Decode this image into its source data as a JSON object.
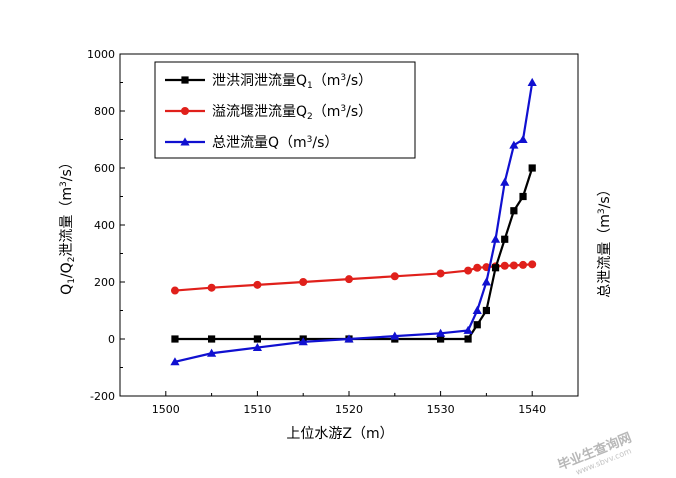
{
  "chart_data": {
    "type": "line",
    "xlabel": "上位水游Z（m）",
    "ylabel_left": "Q",
    "ylabel_left_sub1": "1",
    "ylabel_left_mid": "/Q",
    "ylabel_left_sub2": "2",
    "ylabel_left_rest": "泄流量（m",
    "ylabel_left_sup": "3",
    "ylabel_left_end": "/s）",
    "ylabel_right": "总泄流量（m",
    "ylabel_right_sup": "3",
    "ylabel_right_end": "/s）",
    "xlim": [
      1495,
      1545
    ],
    "ylim": [
      -200,
      1000
    ],
    "xticks": [
      1500,
      1510,
      1520,
      1530,
      1540
    ],
    "yticks": [
      -200,
      0,
      200,
      400,
      600,
      800,
      1000
    ],
    "grid": false,
    "legend_position": "top-left",
    "series": [
      {
        "name": "泄洪洞泄流量Q",
        "name_sub": "1",
        "unit_open": "（m",
        "unit_sup": "3",
        "unit_close": "/s）",
        "color": "#000000",
        "marker": "square",
        "x": [
          1501,
          1505,
          1510,
          1515,
          1520,
          1525,
          1530,
          1533,
          1534,
          1535,
          1536,
          1537,
          1538,
          1539,
          1540
        ],
        "y": [
          0,
          0,
          0,
          0,
          0,
          0,
          0,
          0,
          50,
          100,
          250,
          350,
          450,
          500,
          600
        ]
      },
      {
        "name": "溢流堰泄流量Q",
        "name_sub": "2",
        "unit_open": "（m",
        "unit_sup": "3",
        "unit_close": "/s）",
        "color": "#e0201b",
        "marker": "circle",
        "x": [
          1501,
          1505,
          1510,
          1515,
          1520,
          1525,
          1530,
          1533,
          1534,
          1535,
          1536,
          1537,
          1538,
          1539,
          1540
        ],
        "y": [
          170,
          180,
          190,
          200,
          210,
          220,
          230,
          240,
          250,
          252,
          255,
          257,
          258,
          260,
          262
        ]
      },
      {
        "name": "总泄流量Q",
        "name_sub": "",
        "unit_open": "（m",
        "unit_sup": "3",
        "unit_close": "/s）",
        "color": "#1010d0",
        "marker": "triangle",
        "x": [
          1501,
          1505,
          1510,
          1515,
          1520,
          1525,
          1530,
          1533,
          1534,
          1535,
          1536,
          1537,
          1538,
          1539,
          1540
        ],
        "y": [
          -80,
          -50,
          -30,
          -10,
          0,
          10,
          20,
          30,
          100,
          200,
          350,
          550,
          680,
          700,
          900
        ]
      }
    ]
  },
  "watermark": {
    "text": "毕业生查询网",
    "url": "www.sbvv.com"
  }
}
